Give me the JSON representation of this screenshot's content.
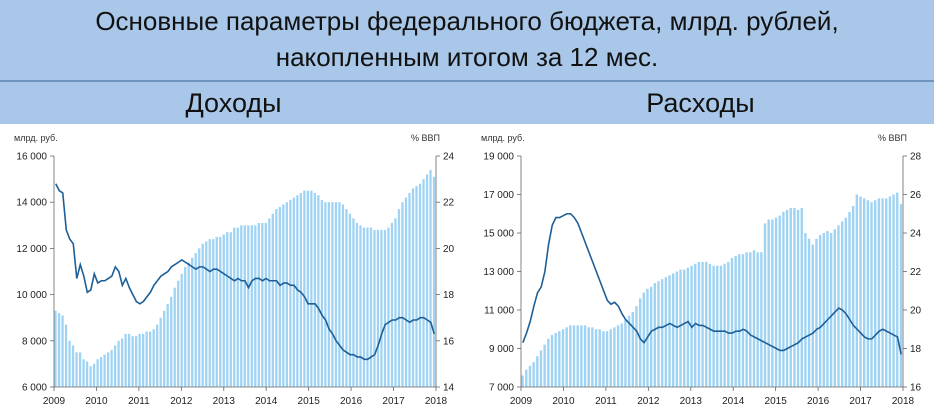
{
  "header": {
    "title_line1": "Основные параметры федерального бюджета, млрд. рублей,",
    "title_line2": "накопленным итогом за 12 мес."
  },
  "colors": {
    "band": "#a9c7e8",
    "bars": "#9fd3f3",
    "line": "#1d5f96",
    "axis": "#666666"
  },
  "chart_data": [
    {
      "type": "bar",
      "title": "Доходы",
      "ylabel_left": "млрд. руб.",
      "ylabel_right": "% ВВП",
      "ylim_left": [
        6000,
        16000
      ],
      "yticks_left": [
        "6 000",
        "8 000",
        "10 000",
        "12 000",
        "14 000",
        "16 000"
      ],
      "ylim_right": [
        14,
        24
      ],
      "yticks_right": [
        "14",
        "16",
        "18",
        "20",
        "22",
        "24"
      ],
      "xticks": [
        "2009",
        "2010",
        "2011",
        "2012",
        "2013",
        "2014",
        "2015",
        "2016",
        "2017",
        "2018"
      ],
      "series": [
        {
          "kind": "bar",
          "axis": "left",
          "values": [
            9300,
            9200,
            9100,
            8700,
            8000,
            7800,
            7500,
            7500,
            7200,
            7100,
            6900,
            7000,
            7200,
            7300,
            7400,
            7500,
            7600,
            7800,
            8000,
            8100,
            8300,
            8300,
            8200,
            8200,
            8300,
            8300,
            8400,
            8400,
            8500,
            8700,
            9000,
            9300,
            9600,
            9900,
            10300,
            10600,
            10900,
            11200,
            11400,
            11600,
            11800,
            12000,
            12200,
            12300,
            12400,
            12400,
            12500,
            12500,
            12600,
            12700,
            12700,
            12900,
            12900,
            13000,
            13000,
            13000,
            13000,
            13000,
            13100,
            13100,
            13100,
            13300,
            13500,
            13700,
            13800,
            13900,
            14000,
            14100,
            14200,
            14300,
            14400,
            14500,
            14500,
            14500,
            14400,
            14300,
            14100,
            14000,
            14000,
            14000,
            14000,
            14000,
            13900,
            13700,
            13500,
            13300,
            13100,
            13000,
            12900,
            12900,
            12900,
            12800,
            12800,
            12800,
            12800,
            12900,
            13100,
            13300,
            13700,
            14000,
            14200,
            14400,
            14600,
            14700,
            14800,
            15000,
            15200,
            15400,
            15100
          ]
        },
        {
          "kind": "line",
          "axis": "right",
          "values": [
            22.8,
            22.5,
            22.4,
            20.8,
            20.4,
            20.2,
            18.7,
            19.3,
            18.8,
            18.1,
            18.2,
            18.9,
            18.5,
            18.6,
            18.6,
            18.7,
            18.8,
            19.2,
            19.0,
            18.4,
            18.7,
            18.3,
            18.0,
            17.7,
            17.6,
            17.7,
            17.9,
            18.1,
            18.4,
            18.6,
            18.8,
            18.9,
            19.0,
            19.2,
            19.3,
            19.4,
            19.5,
            19.4,
            19.3,
            19.2,
            19.1,
            19.2,
            19.2,
            19.1,
            19.0,
            19.1,
            19.1,
            19.0,
            18.9,
            18.8,
            18.7,
            18.6,
            18.7,
            18.6,
            18.6,
            18.3,
            18.6,
            18.7,
            18.7,
            18.6,
            18.7,
            18.6,
            18.6,
            18.6,
            18.4,
            18.5,
            18.5,
            18.4,
            18.4,
            18.2,
            18.1,
            17.9,
            17.6,
            17.6,
            17.6,
            17.4,
            17.1,
            16.9,
            16.5,
            16.3,
            16.0,
            15.8,
            15.6,
            15.5,
            15.4,
            15.4,
            15.3,
            15.3,
            15.2,
            15.2,
            15.3,
            15.4,
            15.8,
            16.3,
            16.7,
            16.8,
            16.9,
            16.9,
            17.0,
            17.0,
            16.9,
            16.8,
            16.9,
            16.9,
            17.0,
            17.0,
            16.9,
            16.8,
            16.3
          ]
        }
      ]
    },
    {
      "type": "bar",
      "title": "Расходы",
      "ylabel_left": "млрд. руб.",
      "ylabel_right": "% ВВП",
      "ylim_left": [
        7000,
        19000
      ],
      "yticks_left": [
        "7 000",
        "9 000",
        "11 000",
        "13 000",
        "15 000",
        "17 000",
        "19 000"
      ],
      "ylim_right": [
        16,
        28
      ],
      "yticks_right": [
        "16",
        "18",
        "20",
        "22",
        "24",
        "26",
        "28"
      ],
      "xticks": [
        "2009",
        "2010",
        "2011",
        "2012",
        "2013",
        "2014",
        "2015",
        "2016",
        "2017",
        "2018"
      ],
      "series": [
        {
          "kind": "bar",
          "axis": "left",
          "values": [
            7600,
            7900,
            8100,
            8300,
            8600,
            8900,
            9200,
            9500,
            9700,
            9800,
            9900,
            10000,
            10100,
            10200,
            10200,
            10200,
            10200,
            10200,
            10100,
            10100,
            10000,
            10000,
            9900,
            9900,
            10000,
            10100,
            10200,
            10300,
            10500,
            10700,
            10900,
            11200,
            11600,
            11900,
            12100,
            12200,
            12400,
            12500,
            12600,
            12700,
            12800,
            12900,
            13000,
            13100,
            13100,
            13200,
            13300,
            13400,
            13500,
            13500,
            13500,
            13400,
            13300,
            13300,
            13300,
            13400,
            13500,
            13700,
            13800,
            13900,
            13900,
            14000,
            14000,
            14100,
            14000,
            14000,
            15500,
            15700,
            15700,
            15800,
            15900,
            16100,
            16200,
            16300,
            16300,
            16200,
            16300,
            15000,
            14700,
            14400,
            14700,
            14900,
            15000,
            15100,
            15000,
            15200,
            15400,
            15600,
            15800,
            16100,
            16400,
            17000,
            16900,
            16800,
            16700,
            16600,
            16700,
            16800,
            16800,
            16800,
            16900,
            17000,
            17100,
            16500
          ]
        },
        {
          "kind": "line",
          "axis": "right",
          "values": [
            18.3,
            18.8,
            19.4,
            20.2,
            20.9,
            21.2,
            22.0,
            23.4,
            24.4,
            24.8,
            24.8,
            24.9,
            25.0,
            25.0,
            24.8,
            24.5,
            24.0,
            23.5,
            23.0,
            22.5,
            22.0,
            21.5,
            21.0,
            20.5,
            20.3,
            20.4,
            20.2,
            19.8,
            19.5,
            19.3,
            19.1,
            18.9,
            18.5,
            18.3,
            18.6,
            18.9,
            19.0,
            19.1,
            19.1,
            19.2,
            19.3,
            19.2,
            19.1,
            19.2,
            19.3,
            19.4,
            19.1,
            19.3,
            19.2,
            19.2,
            19.1,
            19.0,
            18.9,
            18.9,
            18.9,
            18.9,
            18.8,
            18.8,
            18.9,
            18.9,
            19.0,
            18.9,
            18.7,
            18.6,
            18.5,
            18.4,
            18.3,
            18.2,
            18.1,
            18.0,
            17.9,
            17.9,
            18.0,
            18.1,
            18.2,
            18.3,
            18.5,
            18.6,
            18.7,
            18.8,
            19.0,
            19.1,
            19.3,
            19.5,
            19.7,
            19.9,
            20.1,
            20.0,
            19.8,
            19.5,
            19.2,
            19.0,
            18.8,
            18.6,
            18.5,
            18.5,
            18.7,
            18.9,
            19.0,
            18.9,
            18.8,
            18.7,
            18.6,
            17.7
          ]
        }
      ]
    }
  ]
}
